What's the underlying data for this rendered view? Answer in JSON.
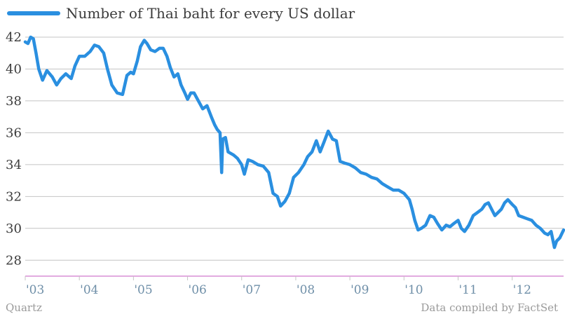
{
  "chart_data": {
    "type": "line",
    "title": "",
    "xlabel": "",
    "ylabel": "",
    "ylim": [
      27,
      42
    ],
    "xlim": [
      2003.0,
      2012.95
    ],
    "y_ticks": [
      28,
      30,
      32,
      34,
      36,
      38,
      40,
      42
    ],
    "x_ticks": [
      {
        "label": "'03",
        "value": 2003.0
      },
      {
        "label": "'04",
        "value": 2004.0
      },
      {
        "label": "'05",
        "value": 2005.0
      },
      {
        "label": "'06",
        "value": 2006.0
      },
      {
        "label": "'07",
        "value": 2007.0
      },
      {
        "label": "'08",
        "value": 2008.0
      },
      {
        "label": "'09",
        "value": 2009.0
      },
      {
        "label": "'10",
        "value": 2010.0
      },
      {
        "label": "'11",
        "value": 2011.0
      },
      {
        "label": "'12",
        "value": 2012.0
      }
    ],
    "grid": true,
    "legend_position": "top-left",
    "series": [
      {
        "name": "Number of Thai baht for every US dollar",
        "color": "#2a8fe0",
        "points": [
          [
            2003.0,
            41.7
          ],
          [
            2003.05,
            41.6
          ],
          [
            2003.1,
            42.0
          ],
          [
            2003.15,
            41.9
          ],
          [
            2003.2,
            41.0
          ],
          [
            2003.25,
            40.0
          ],
          [
            2003.32,
            39.3
          ],
          [
            2003.4,
            39.9
          ],
          [
            2003.5,
            39.5
          ],
          [
            2003.58,
            39.0
          ],
          [
            2003.66,
            39.4
          ],
          [
            2003.75,
            39.7
          ],
          [
            2003.85,
            39.4
          ],
          [
            2003.92,
            40.2
          ],
          [
            2004.0,
            40.8
          ],
          [
            2004.1,
            40.8
          ],
          [
            2004.2,
            41.1
          ],
          [
            2004.28,
            41.5
          ],
          [
            2004.36,
            41.4
          ],
          [
            2004.45,
            41.0
          ],
          [
            2004.52,
            40.0
          ],
          [
            2004.6,
            39.0
          ],
          [
            2004.7,
            38.5
          ],
          [
            2004.8,
            38.4
          ],
          [
            2004.88,
            39.6
          ],
          [
            2004.95,
            39.8
          ],
          [
            2005.0,
            39.7
          ],
          [
            2005.07,
            40.5
          ],
          [
            2005.13,
            41.4
          ],
          [
            2005.2,
            41.8
          ],
          [
            2005.25,
            41.6
          ],
          [
            2005.32,
            41.2
          ],
          [
            2005.4,
            41.1
          ],
          [
            2005.48,
            41.3
          ],
          [
            2005.55,
            41.3
          ],
          [
            2005.62,
            40.8
          ],
          [
            2005.68,
            40.1
          ],
          [
            2005.75,
            39.5
          ],
          [
            2005.82,
            39.7
          ],
          [
            2005.88,
            39.0
          ],
          [
            2005.95,
            38.5
          ],
          [
            2006.0,
            38.1
          ],
          [
            2006.06,
            38.5
          ],
          [
            2006.12,
            38.5
          ],
          [
            2006.2,
            38.0
          ],
          [
            2006.28,
            37.5
          ],
          [
            2006.36,
            37.7
          ],
          [
            2006.44,
            37.0
          ],
          [
            2006.5,
            36.5
          ],
          [
            2006.55,
            36.2
          ],
          [
            2006.6,
            36.0
          ],
          [
            2006.63,
            33.5
          ],
          [
            2006.65,
            35.6
          ],
          [
            2006.7,
            35.7
          ],
          [
            2006.75,
            34.8
          ],
          [
            2006.85,
            34.6
          ],
          [
            2006.92,
            34.4
          ],
          [
            2007.0,
            34.0
          ],
          [
            2007.05,
            33.4
          ],
          [
            2007.12,
            34.3
          ],
          [
            2007.2,
            34.2
          ],
          [
            2007.3,
            34.0
          ],
          [
            2007.4,
            33.9
          ],
          [
            2007.5,
            33.5
          ],
          [
            2007.58,
            32.2
          ],
          [
            2007.66,
            32.0
          ],
          [
            2007.72,
            31.4
          ],
          [
            2007.8,
            31.7
          ],
          [
            2007.88,
            32.2
          ],
          [
            2007.96,
            33.2
          ],
          [
            2008.05,
            33.5
          ],
          [
            2008.15,
            34.0
          ],
          [
            2008.22,
            34.5
          ],
          [
            2008.3,
            34.8
          ],
          [
            2008.38,
            35.5
          ],
          [
            2008.45,
            34.8
          ],
          [
            2008.52,
            35.4
          ],
          [
            2008.6,
            36.1
          ],
          [
            2008.68,
            35.6
          ],
          [
            2008.75,
            35.5
          ],
          [
            2008.82,
            34.2
          ],
          [
            2008.9,
            34.1
          ],
          [
            2009.0,
            34.0
          ],
          [
            2009.1,
            33.8
          ],
          [
            2009.2,
            33.5
          ],
          [
            2009.3,
            33.4
          ],
          [
            2009.4,
            33.2
          ],
          [
            2009.5,
            33.1
          ],
          [
            2009.6,
            32.8
          ],
          [
            2009.7,
            32.6
          ],
          [
            2009.8,
            32.4
          ],
          [
            2009.9,
            32.4
          ],
          [
            2010.0,
            32.2
          ],
          [
            2010.1,
            31.8
          ],
          [
            2010.15,
            31.2
          ],
          [
            2010.2,
            30.5
          ],
          [
            2010.26,
            29.9
          ],
          [
            2010.32,
            30.0
          ],
          [
            2010.4,
            30.2
          ],
          [
            2010.48,
            30.8
          ],
          [
            2010.55,
            30.7
          ],
          [
            2010.62,
            30.3
          ],
          [
            2010.7,
            29.9
          ],
          [
            2010.78,
            30.2
          ],
          [
            2010.85,
            30.1
          ],
          [
            2010.92,
            30.3
          ],
          [
            2011.0,
            30.5
          ],
          [
            2011.06,
            30.0
          ],
          [
            2011.12,
            29.8
          ],
          [
            2011.2,
            30.2
          ],
          [
            2011.28,
            30.8
          ],
          [
            2011.36,
            31.0
          ],
          [
            2011.44,
            31.2
          ],
          [
            2011.5,
            31.5
          ],
          [
            2011.56,
            31.6
          ],
          [
            2011.62,
            31.2
          ],
          [
            2011.68,
            30.8
          ],
          [
            2011.74,
            31.0
          ],
          [
            2011.8,
            31.2
          ],
          [
            2011.86,
            31.6
          ],
          [
            2011.92,
            31.8
          ],
          [
            2012.0,
            31.5
          ],
          [
            2012.06,
            31.3
          ],
          [
            2012.12,
            30.8
          ],
          [
            2012.2,
            30.7
          ],
          [
            2012.28,
            30.6
          ],
          [
            2012.36,
            30.5
          ],
          [
            2012.44,
            30.2
          ],
          [
            2012.52,
            30.0
          ],
          [
            2012.6,
            29.7
          ],
          [
            2012.66,
            29.6
          ],
          [
            2012.72,
            29.8
          ],
          [
            2012.78,
            28.8
          ],
          [
            2012.82,
            29.2
          ],
          [
            2012.88,
            29.4
          ],
          [
            2012.95,
            29.9
          ]
        ]
      }
    ]
  },
  "footer": {
    "source": "Quartz",
    "credit": "Data compiled by FactSet"
  }
}
